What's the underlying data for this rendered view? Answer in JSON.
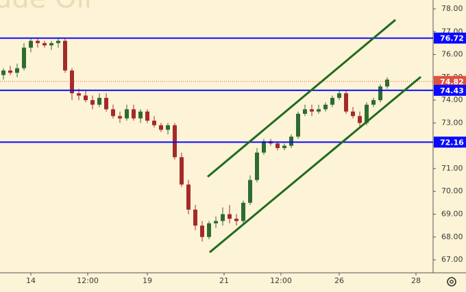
{
  "chart_data": {
    "type": "candlestick",
    "watermark": "ude Oil",
    "x": [
      0,
      1,
      2,
      3,
      4,
      5,
      6,
      7,
      8,
      9,
      10,
      11,
      12,
      13,
      14,
      15,
      16,
      17,
      18,
      19,
      20,
      21,
      22,
      23,
      24,
      25,
      26,
      27,
      28,
      29,
      30,
      31,
      32,
      33,
      34,
      35,
      36,
      37,
      38,
      39,
      40,
      41,
      42,
      43,
      44,
      45,
      46,
      47,
      48,
      49,
      50,
      51,
      52,
      53,
      54,
      55,
      56
    ],
    "open": [
      75.1,
      75.3,
      75.2,
      75.4,
      76.3,
      76.6,
      76.5,
      76.4,
      76.5,
      76.6,
      75.3,
      74.3,
      74.2,
      74.0,
      73.8,
      74.1,
      73.6,
      73.3,
      73.2,
      73.6,
      73.2,
      73.5,
      73.1,
      72.9,
      72.7,
      72.9,
      71.5,
      70.3,
      69.2,
      68.5,
      68.0,
      68.6,
      68.7,
      69.0,
      68.8,
      68.7,
      69.5,
      70.5,
      71.7,
      72.2,
      72.1,
      71.9,
      72.0,
      72.4,
      73.4,
      73.6,
      73.5,
      73.6,
      73.8,
      74.1,
      74.3,
      73.5,
      73.3,
      73.0,
      73.8,
      74.0,
      74.6
    ],
    "high": [
      75.4,
      75.5,
      75.6,
      76.5,
      76.7,
      76.7,
      76.6,
      76.6,
      76.7,
      76.7,
      75.4,
      74.5,
      74.4,
      74.2,
      74.3,
      74.3,
      73.8,
      73.5,
      73.8,
      73.8,
      73.6,
      73.6,
      73.3,
      73.0,
      73.0,
      73.0,
      71.7,
      70.5,
      69.4,
      68.7,
      68.7,
      68.9,
      69.3,
      69.4,
      69.0,
      69.6,
      70.7,
      71.9,
      72.3,
      72.3,
      72.2,
      72.1,
      72.5,
      73.5,
      73.8,
      73.8,
      73.8,
      73.9,
      74.2,
      74.4,
      74.4,
      73.7,
      73.5,
      73.9,
      74.1,
      74.7,
      75.0
    ],
    "low": [
      74.9,
      75.1,
      75.0,
      75.3,
      76.1,
      76.3,
      76.3,
      76.2,
      76.3,
      75.2,
      74.0,
      74.0,
      73.9,
      73.6,
      73.7,
      73.5,
      73.2,
      73.0,
      73.1,
      73.1,
      73.0,
      73.0,
      72.8,
      72.6,
      72.5,
      71.4,
      70.2,
      69.0,
      68.3,
      67.8,
      67.9,
      68.4,
      68.5,
      68.6,
      68.5,
      68.6,
      69.4,
      70.4,
      71.6,
      72.0,
      71.8,
      71.8,
      71.9,
      72.3,
      73.3,
      73.3,
      73.4,
      73.5,
      73.7,
      74.0,
      73.4,
      73.2,
      72.8,
      72.9,
      73.7,
      73.9,
      74.5
    ],
    "close": [
      75.3,
      75.2,
      75.4,
      76.3,
      76.6,
      76.5,
      76.4,
      76.5,
      76.6,
      75.3,
      74.3,
      74.2,
      74.0,
      73.8,
      74.1,
      73.6,
      73.3,
      73.2,
      73.6,
      73.2,
      73.5,
      73.1,
      72.9,
      72.7,
      72.9,
      71.5,
      70.3,
      69.2,
      68.5,
      68.0,
      68.6,
      68.7,
      69.0,
      68.8,
      68.7,
      69.5,
      70.5,
      71.7,
      72.2,
      72.1,
      71.9,
      72.0,
      72.4,
      73.4,
      73.6,
      73.5,
      73.6,
      73.8,
      74.1,
      74.3,
      73.5,
      73.3,
      73.0,
      73.8,
      74.0,
      74.6,
      74.9
    ],
    "up_color": "#2e6b30",
    "down_color": "#a52a2a",
    "xlim": [
      -0.5,
      62.7
    ],
    "xticks": [
      {
        "value": 4,
        "label": "14"
      },
      {
        "value": 12.3,
        "label": "12:00"
      },
      {
        "value": 21,
        "label": "19"
      },
      {
        "value": 32.2,
        "label": "21"
      },
      {
        "value": 40.5,
        "label": "12:00"
      },
      {
        "value": 49,
        "label": "26"
      },
      {
        "value": 60.2,
        "label": "28"
      }
    ],
    "ylim": [
      66.43,
      78.39
    ],
    "yticks": [
      {
        "value": 78,
        "label": "78.00"
      },
      {
        "value": 77,
        "label": "77.00"
      },
      {
        "value": 76,
        "label": "76.00"
      },
      {
        "value": 75,
        "label": "75.00"
      },
      {
        "value": 74,
        "label": "74.00"
      },
      {
        "value": 73,
        "label": "73.00"
      },
      {
        "value": 72,
        "label": "72.00"
      },
      {
        "value": 71,
        "label": "71.00"
      },
      {
        "value": 70,
        "label": "70.00"
      },
      {
        "value": 69,
        "label": "69.00"
      },
      {
        "value": 68,
        "label": "68.00"
      },
      {
        "value": 67,
        "label": "67.00"
      }
    ],
    "grid": false,
    "levels": [
      {
        "value": 76.72,
        "color": "#0a0aff"
      },
      {
        "value": 74.43,
        "color": "#0a0aff"
      },
      {
        "value": 72.16,
        "color": "#0a0aff"
      }
    ],
    "last_price": {
      "value": 74.82,
      "color": "#e0533f"
    },
    "trendlines": [
      {
        "x": [
          29.8,
          57.2
        ],
        "y": [
          70.64,
          77.52
        ],
        "color": "#1e6b1e"
      },
      {
        "x": [
          30.1,
          60.9
        ],
        "y": [
          67.33,
          75.02
        ],
        "color": "#1e6b1e"
      }
    ]
  }
}
